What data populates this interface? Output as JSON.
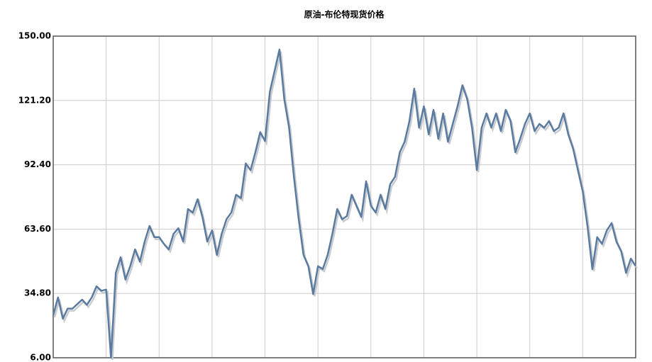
{
  "chart_data": {
    "type": "line",
    "title": "原油-布伦特现货价格",
    "series": [
      {
        "color": "#5a7aa0",
        "values": [
          25,
          33,
          23.5,
          28,
          28,
          30,
          32,
          29.7,
          33,
          38,
          36,
          36.5,
          6,
          44,
          51,
          41,
          47,
          54.5,
          49,
          58,
          65,
          60,
          60,
          57,
          54.5,
          61.5,
          64,
          58,
          72.6,
          71,
          77,
          69,
          58,
          63,
          52,
          61.5,
          68,
          71,
          79,
          77.5,
          93,
          90,
          98,
          107,
          103,
          125,
          134.5,
          144,
          121.8,
          109,
          87,
          68,
          52,
          47,
          34.5,
          47,
          45.7,
          52,
          61.5,
          72.6,
          68,
          69.4,
          79,
          74,
          69,
          85,
          74,
          71,
          79,
          72.6,
          83.7,
          87,
          98,
          102.7,
          112,
          126.5,
          109,
          118.6,
          106,
          117,
          104,
          115.4,
          102.7,
          110.7,
          118.6,
          128,
          121.8,
          109,
          90,
          109,
          115.4,
          109,
          115.4,
          107.5,
          117,
          112,
          98,
          104,
          110.7,
          115.4,
          107.5,
          110.7,
          109,
          112,
          107.5,
          109,
          115.4,
          106,
          99.6,
          90,
          80.5,
          64.7,
          45.7,
          60,
          57,
          63,
          66.3,
          58,
          53.6,
          44,
          50.4,
          47
        ]
      }
    ],
    "ylim": [
      6,
      150
    ],
    "yticks": [
      {
        "value": 6,
        "label": "6.00"
      },
      {
        "value": 34.8,
        "label": "34.80"
      },
      {
        "value": 63.6,
        "label": "63.60"
      },
      {
        "value": 92.4,
        "label": "92.40"
      },
      {
        "value": 121.2,
        "label": "121.20"
      },
      {
        "value": 150,
        "label": "150.00"
      }
    ],
    "grid": true
  }
}
